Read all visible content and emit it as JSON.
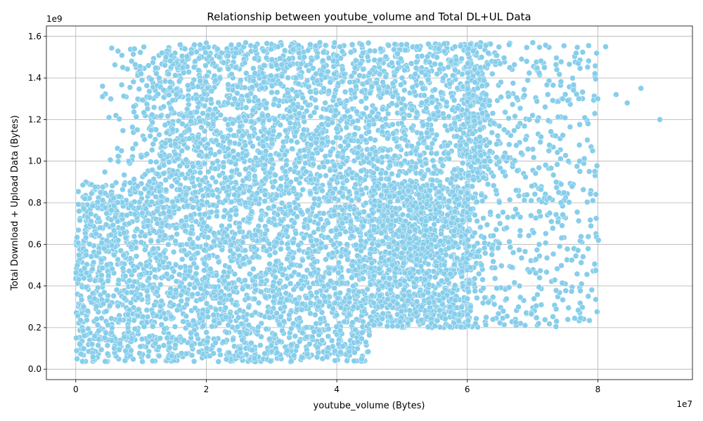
{
  "chart_data": {
    "type": "scatter",
    "title": "Relationship between youtube_volume and Total DL+UL Data",
    "xlabel": "youtube_volume (Bytes)",
    "ylabel": "Total Download + Upload Data (Bytes)",
    "x_offset_text": "1e7",
    "y_offset_text": "1e9",
    "xlim": [
      -4500000,
      94500000
    ],
    "ylim": [
      -50000000,
      1650000000
    ],
    "x_ticks": [
      0,
      20000000,
      40000000,
      60000000,
      80000000
    ],
    "x_tick_labels": [
      "0",
      "2",
      "4",
      "6",
      "8"
    ],
    "y_ticks": [
      0,
      200000000,
      400000000,
      600000000,
      800000000,
      1000000000,
      1200000000,
      1400000000,
      1600000000
    ],
    "y_tick_labels": [
      "0.0",
      "0.2",
      "0.4",
      "0.6",
      "0.8",
      "1.0",
      "1.2",
      "1.4",
      "1.6"
    ],
    "grid": true,
    "marker_color": "#87ceeb",
    "series": [
      {
        "name": "",
        "note_on_density": "dense uniform-like cloud approximated by sampled points",
        "x": [
          500000,
          1200000,
          2500000,
          3800000,
          5000000,
          6500000,
          8000000,
          9500000,
          11000000,
          12500000,
          14000000,
          15500000,
          17000000,
          18500000,
          20000000,
          21500000,
          23000000,
          24500000,
          26000000,
          27500000,
          29000000,
          30500000,
          32000000,
          33500000,
          35000000,
          36500000,
          38000000,
          39500000,
          41000000,
          42500000,
          44000000,
          45500000,
          47000000,
          48500000,
          50000000,
          51500000,
          53000000,
          54500000,
          56000000,
          57500000,
          59000000,
          60500000,
          62000000,
          63500000,
          65000000,
          66500000,
          68000000,
          69500000,
          71000000,
          72500000,
          74000000,
          75500000,
          77000000,
          78500000,
          80000000,
          81200000,
          82800000,
          84500000,
          86600000,
          89500000,
          9000000,
          4100000,
          5100000,
          7000000,
          10000000,
          13200000,
          16000000,
          18300000,
          22000000,
          25000000,
          28800000,
          31000000,
          34200000,
          37400000,
          40500000,
          43800000,
          46700000,
          49900000,
          52300000,
          55600000,
          58100000,
          60900000,
          63200000,
          66400000,
          69100000,
          71800000,
          74600000,
          77200000,
          79200000,
          80100000
        ],
        "y": [
          760000000,
          300000000,
          120000000,
          850000000,
          450000000,
          620000000,
          200000000,
          880000000,
          350000000,
          700000000,
          150000000,
          900000000,
          550000000,
          1300000000,
          400000000,
          1100000000,
          250000000,
          1450000000,
          800000000,
          1550000000,
          650000000,
          1200000000,
          300000000,
          950000000,
          1500000000,
          180000000,
          1350000000,
          600000000,
          1050000000,
          400000000,
          1520000000,
          750000000,
          1250000000,
          500000000,
          1400000000,
          900000000,
          300000000,
          1150000000,
          650000000,
          1480000000,
          850000000,
          550000000,
          1300000000,
          1000000000,
          700000000,
          1450000000,
          400000000,
          1200000000,
          600000000,
          1050000000,
          850000000,
          1000000000,
          1470000000,
          1180000000,
          1300000000,
          1550000000,
          1320000000,
          1280000000,
          1350000000,
          1200000000,
          1540000000,
          1310000000,
          1210000000,
          1050000000,
          1420000000,
          1520000000,
          1560000000,
          1480000000,
          1500000000,
          1560000000,
          1530000000,
          1550000000,
          1520000000,
          1570000000,
          1550000000,
          1560000000,
          1540000000,
          1560000000,
          1550000000,
          1540000000,
          1550000000,
          1530000000,
          1520000000,
          1560000000,
          1480000000,
          1450000000,
          1300000000,
          1000000000,
          1050000000,
          620000000
        ]
      }
    ]
  }
}
